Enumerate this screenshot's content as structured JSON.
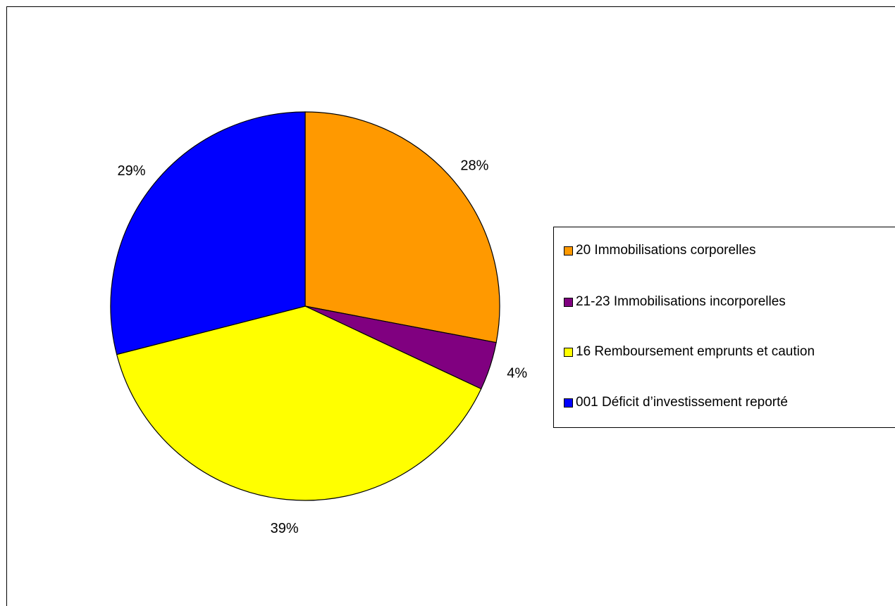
{
  "chart_data": {
    "type": "pie",
    "categories": [
      "20 Immobilisations corporelles",
      "21-23 Immobilisations incorporelles",
      "16 Remboursement emprunts et caution",
      "001 Déficit d’investissement reporté"
    ],
    "values": [
      28,
      4,
      39,
      29
    ],
    "labels": [
      "28%",
      "4%",
      "39%",
      "29%"
    ],
    "colors": [
      "#FF9900",
      "#800080",
      "#FFFF00",
      "#0000FF"
    ],
    "start": "12 o'clock, clockwise",
    "legend_position": "right"
  },
  "legend": {
    "items": [
      {
        "label": "20 Immobilisations corporelles",
        "color": "#FF9900"
      },
      {
        "label": "21-23 Immobilisations incorporelles",
        "color": "#800080"
      },
      {
        "label": "16 Remboursement emprunts et caution",
        "color": "#FFFF00"
      },
      {
        "label": "001 Déficit d’investissement reporté",
        "color": "#0000FF"
      }
    ]
  }
}
